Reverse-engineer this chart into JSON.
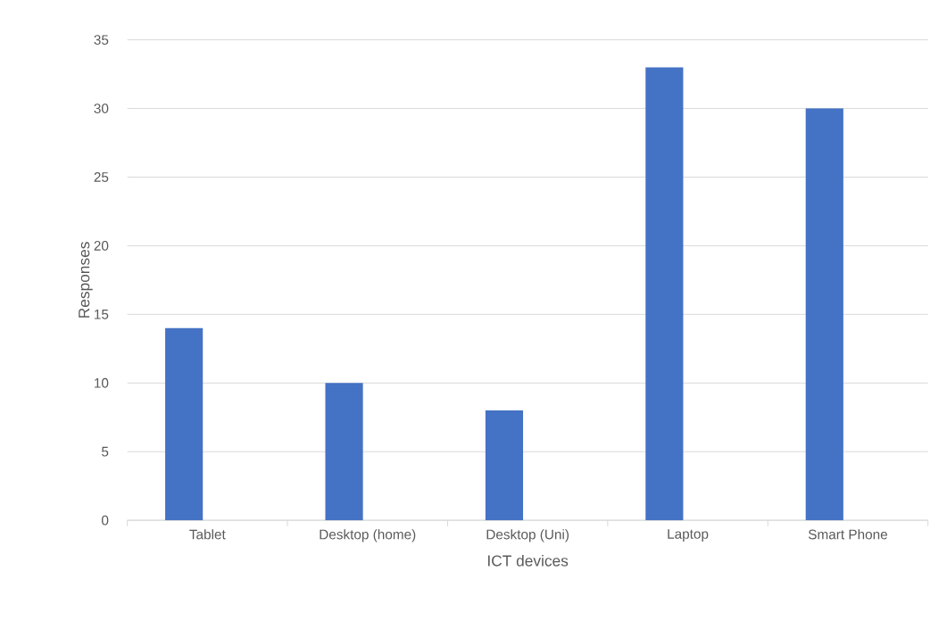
{
  "chart_data": {
    "type": "bar",
    "xlabel": "ICT devices",
    "ylabel": "Responses",
    "categories": [
      "Tablet",
      "Desktop (home)",
      "Desktop (Uni)",
      "Laptop",
      "Smart Phone"
    ],
    "values": [
      14,
      10,
      8,
      33,
      30
    ],
    "color": "#4472c4",
    "ylim": [
      0,
      35
    ],
    "yticks": [
      0,
      5,
      10,
      15,
      20,
      25,
      30,
      35
    ],
    "grid": "y"
  }
}
